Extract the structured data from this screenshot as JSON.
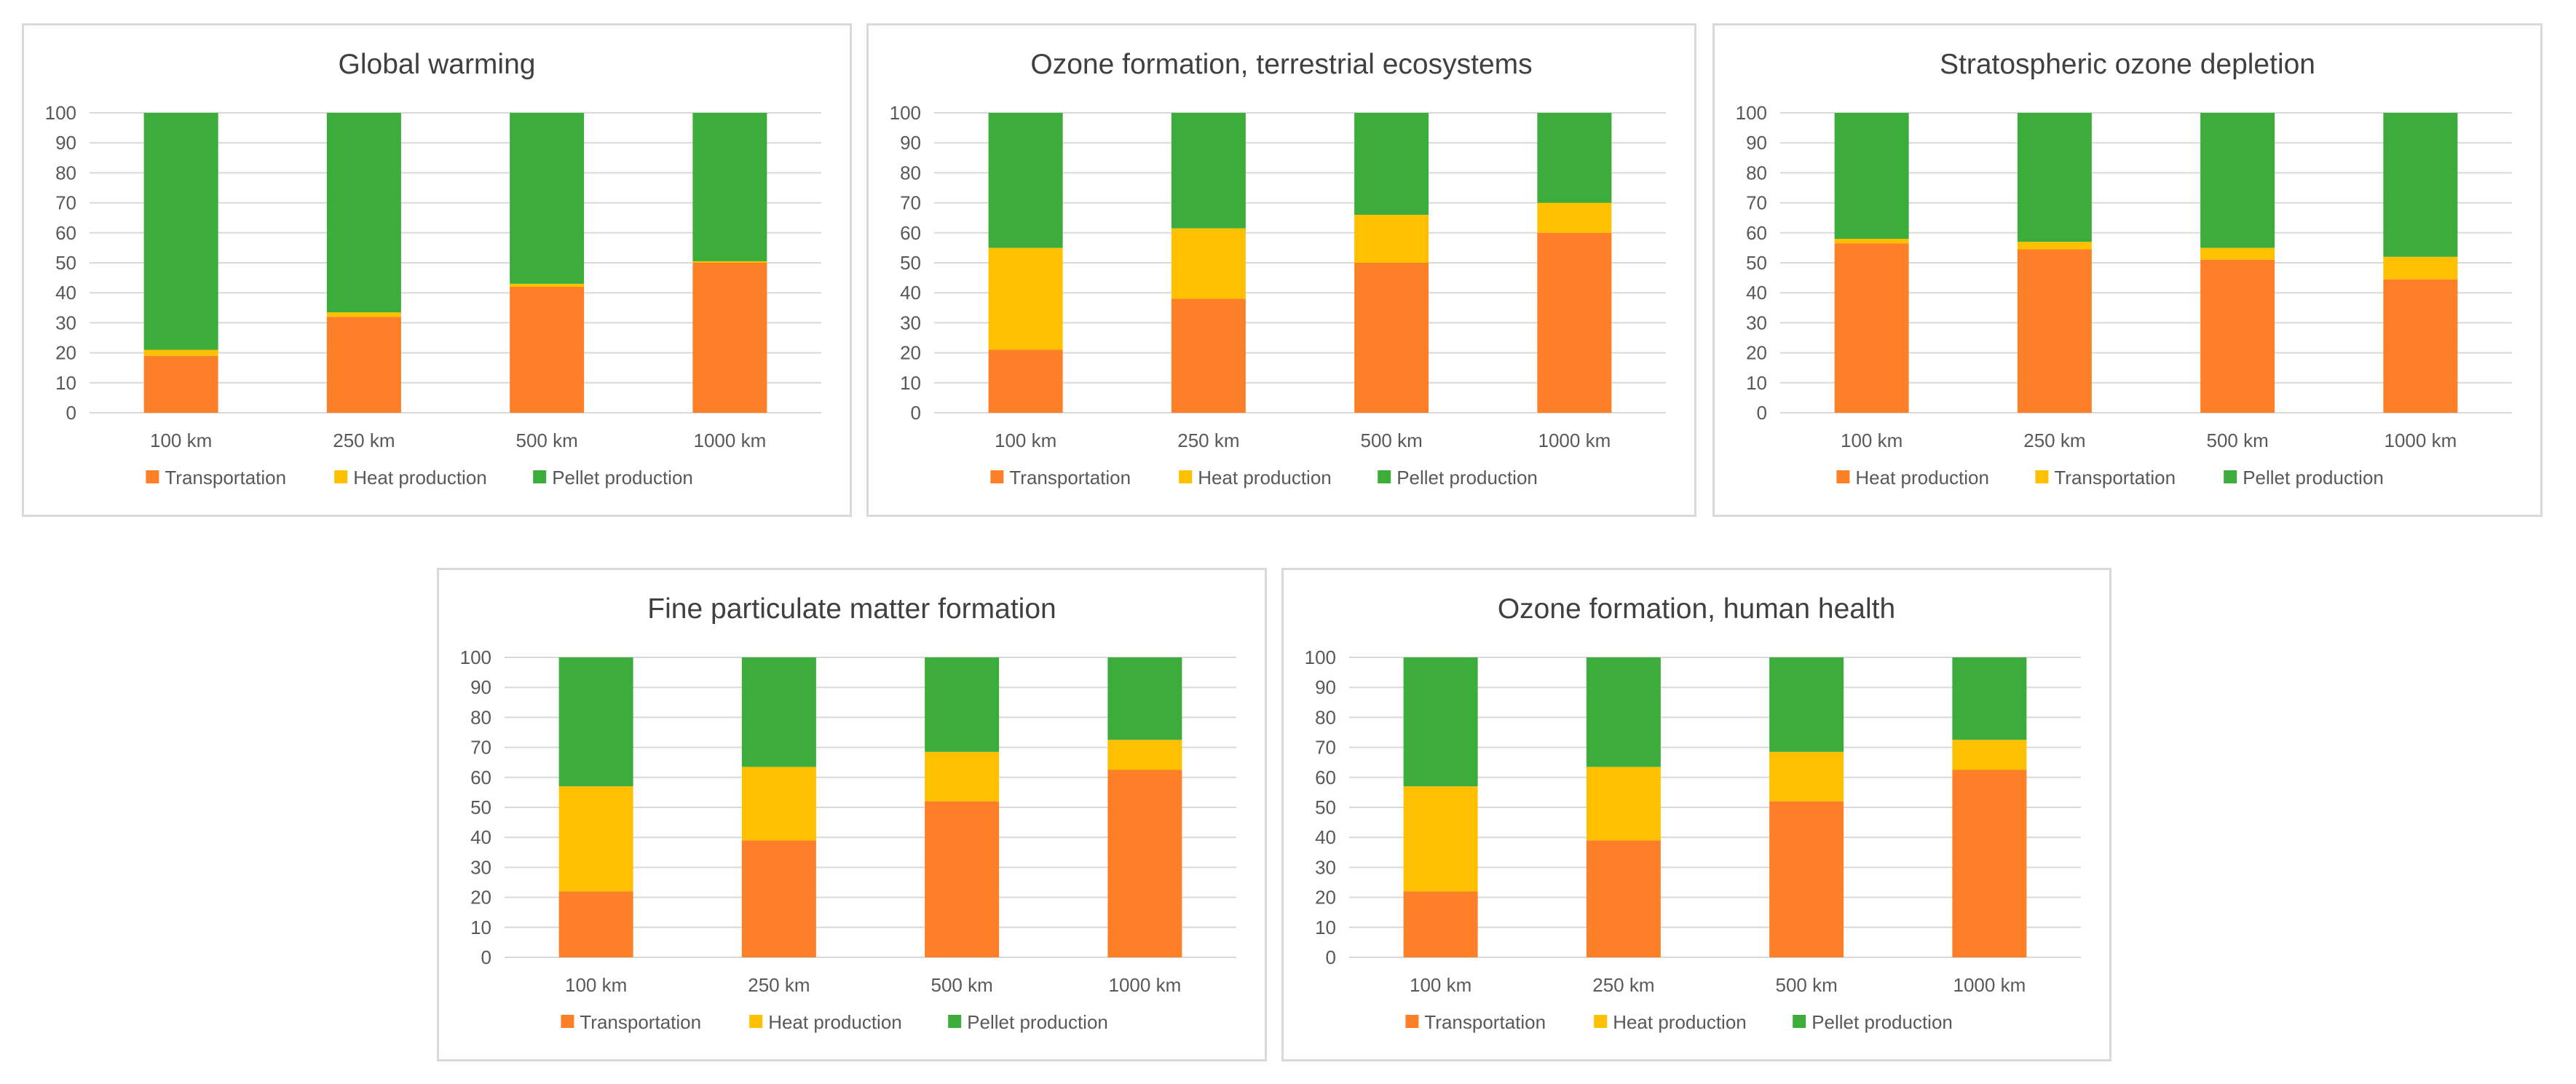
{
  "colors": {
    "orange": "#fd7f27",
    "yellow": "#ffc000",
    "green": "#3cad3a",
    "gridline": "#d9d9d9",
    "text": "#595959",
    "title": "#404040"
  },
  "chart_data": [
    {
      "type": "bar",
      "stacked": true,
      "title": "Global warming",
      "categories": [
        "100 km",
        "250 km",
        "500 km",
        "1000 km"
      ],
      "ylim": [
        0,
        100
      ],
      "yticks": [
        0,
        10,
        20,
        30,
        40,
        50,
        60,
        70,
        80,
        90,
        100
      ],
      "grid": true,
      "legend_position": "bottom",
      "series": [
        {
          "name": "Transportation",
          "color": "#fd7f27",
          "values": [
            19,
            32,
            42,
            50
          ]
        },
        {
          "name": "Heat production",
          "color": "#ffc000",
          "values": [
            2,
            1.5,
            1,
            0.5
          ]
        },
        {
          "name": "Pellet production",
          "color": "#3cad3a",
          "values": [
            79,
            66.5,
            57,
            49.5
          ]
        }
      ]
    },
    {
      "type": "bar",
      "stacked": true,
      "title": "Ozone formation, terrestrial ecosystems",
      "categories": [
        "100 km",
        "250 km",
        "500 km",
        "1000 km"
      ],
      "ylim": [
        0,
        100
      ],
      "yticks": [
        0,
        10,
        20,
        30,
        40,
        50,
        60,
        70,
        80,
        90,
        100
      ],
      "grid": true,
      "legend_position": "bottom",
      "series": [
        {
          "name": "Transportation",
          "color": "#fd7f27",
          "values": [
            21,
            38,
            50,
            60
          ]
        },
        {
          "name": "Heat production",
          "color": "#ffc000",
          "values": [
            34,
            23.5,
            16,
            10
          ]
        },
        {
          "name": "Pellet production",
          "color": "#3cad3a",
          "values": [
            45,
            38.5,
            34,
            30
          ]
        }
      ]
    },
    {
      "type": "bar",
      "stacked": true,
      "title": "Stratospheric ozone depletion",
      "categories": [
        "100 km",
        "250 km",
        "500 km",
        "1000 km"
      ],
      "ylim": [
        0,
        100
      ],
      "yticks": [
        0,
        10,
        20,
        30,
        40,
        50,
        60,
        70,
        80,
        90,
        100
      ],
      "grid": true,
      "legend_position": "bottom",
      "series": [
        {
          "name": "Heat production",
          "color": "#fd7f27",
          "values": [
            56.5,
            54.5,
            51,
            44.5
          ]
        },
        {
          "name": "Transportation",
          "color": "#ffc000",
          "values": [
            1.5,
            2.5,
            4,
            7.5
          ]
        },
        {
          "name": "Pellet production",
          "color": "#3cad3a",
          "values": [
            42,
            43,
            45,
            48
          ]
        }
      ]
    },
    {
      "type": "bar",
      "stacked": true,
      "title": "Fine particulate matter formation",
      "categories": [
        "100 km",
        "250 km",
        "500 km",
        "1000 km"
      ],
      "ylim": [
        0,
        100
      ],
      "yticks": [
        0,
        10,
        20,
        30,
        40,
        50,
        60,
        70,
        80,
        90,
        100
      ],
      "grid": true,
      "legend_position": "bottom",
      "series": [
        {
          "name": "Transportation",
          "color": "#fd7f27",
          "values": [
            22,
            39,
            52,
            62.5
          ]
        },
        {
          "name": "Heat production",
          "color": "#ffc000",
          "values": [
            35,
            24.5,
            16.5,
            10
          ]
        },
        {
          "name": "Pellet production",
          "color": "#3cad3a",
          "values": [
            43,
            36.5,
            31.5,
            27.5
          ]
        }
      ]
    },
    {
      "type": "bar",
      "stacked": true,
      "title": "Ozone formation, human health",
      "categories": [
        "100 km",
        "250 km",
        "500 km",
        "1000 km"
      ],
      "ylim": [
        0,
        100
      ],
      "yticks": [
        0,
        10,
        20,
        30,
        40,
        50,
        60,
        70,
        80,
        90,
        100
      ],
      "grid": true,
      "legend_position": "bottom",
      "series": [
        {
          "name": "Transportation",
          "color": "#fd7f27",
          "values": [
            22,
            39,
            52,
            62.5
          ]
        },
        {
          "name": "Heat production",
          "color": "#ffc000",
          "values": [
            35,
            24.5,
            16.5,
            10
          ]
        },
        {
          "name": "Pellet production",
          "color": "#3cad3a",
          "values": [
            43,
            36.5,
            31.5,
            27.5
          ]
        }
      ]
    }
  ]
}
